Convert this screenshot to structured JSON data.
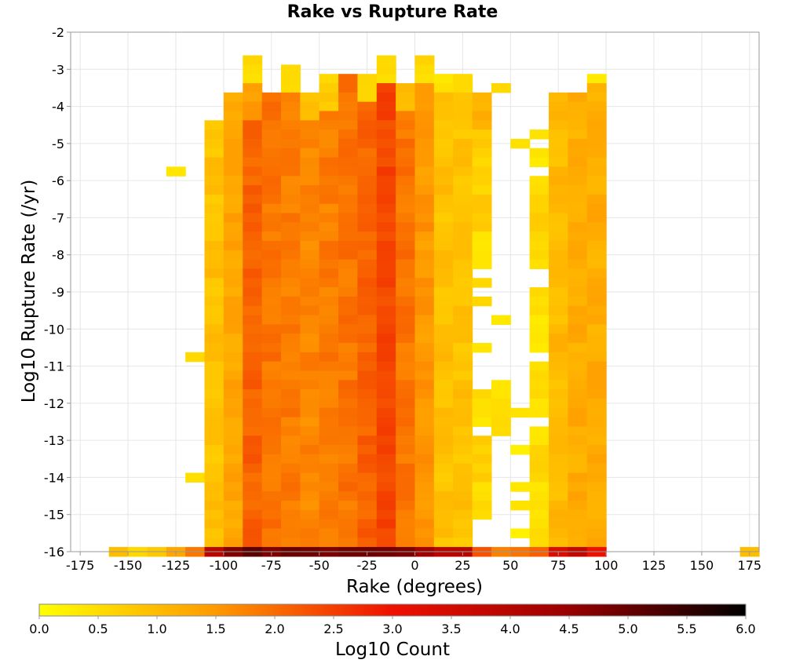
{
  "chart_data": {
    "type": "heatmap",
    "title": "Rake vs Rupture Rate",
    "xlabel": "Rake (degrees)",
    "ylabel": "Log10 Rupture Rate (/yr)",
    "xlim": [
      -180,
      180
    ],
    "ylim": [
      -16,
      -2
    ],
    "x_ticks": [
      -175,
      -150,
      -125,
      -100,
      -75,
      -50,
      -25,
      0,
      25,
      50,
      75,
      100,
      125,
      150,
      175
    ],
    "y_ticks": [
      -2,
      -3,
      -4,
      -5,
      -6,
      -7,
      -8,
      -9,
      -10,
      -11,
      -12,
      -13,
      -14,
      -15,
      -16
    ],
    "cell_width": 10,
    "cell_height": 0.25,
    "grid": true,
    "colorbar": {
      "label": "Log10 Count",
      "range": [
        0,
        6
      ],
      "ticks": [
        "0.0",
        "0.5",
        "1.0",
        "1.5",
        "2.0",
        "2.5",
        "3.0",
        "3.5",
        "4.0",
        "4.5",
        "5.0",
        "5.5",
        "6.0"
      ],
      "colors": [
        "#ffff00",
        "#ff9900",
        "#ee1100",
        "#990000",
        "#000000"
      ]
    },
    "bottom_row": {
      "y": -16,
      "cells": [
        [
          -155,
          1.0
        ],
        [
          -145,
          0.6
        ],
        [
          -135,
          1.0
        ],
        [
          -125,
          1.3
        ],
        [
          -115,
          1.8
        ],
        [
          -105,
          4.2
        ],
        [
          -95,
          4.8
        ],
        [
          -85,
          5.2
        ],
        [
          -75,
          5.0
        ],
        [
          -65,
          5.0
        ],
        [
          -55,
          4.9
        ],
        [
          -45,
          4.9
        ],
        [
          -35,
          4.9
        ],
        [
          -25,
          4.9
        ],
        [
          -15,
          5.0
        ],
        [
          -5,
          4.8
        ],
        [
          5,
          4.4
        ],
        [
          15,
          4.2
        ],
        [
          25,
          4.0
        ],
        [
          35,
          2.3
        ],
        [
          45,
          2.0
        ],
        [
          55,
          2.0
        ],
        [
          65,
          2.2
        ],
        [
          75,
          3.5
        ],
        [
          85,
          4.0
        ],
        [
          95,
          3.0
        ],
        [
          175,
          1.2
        ]
      ]
    },
    "columns": [
      {
        "x": -125,
        "cells": [
          [
            -5.75,
            -5.75,
            0.5
          ]
        ]
      },
      {
        "x": -115,
        "cells": [
          [
            -10.75,
            -10.75,
            0.5
          ],
          [
            -14.0,
            -14.0,
            0.6
          ]
        ]
      },
      {
        "x": -105,
        "cells": [
          [
            -4.5,
            -15.75,
            1.0
          ]
        ]
      },
      {
        "x": -95,
        "cells": [
          [
            -3.75,
            -15.75,
            1.4
          ]
        ]
      },
      {
        "x": -85,
        "cells": [
          [
            -2.75,
            -3.25,
            0.7
          ],
          [
            -3.5,
            -4.25,
            1.6
          ],
          [
            -4.5,
            -15.75,
            2.2
          ]
        ]
      },
      {
        "x": -75,
        "cells": [
          [
            -3.75,
            -15.75,
            2.0
          ]
        ]
      },
      {
        "x": -65,
        "cells": [
          [
            -3.0,
            -3.5,
            0.6
          ],
          [
            -3.75,
            -15.75,
            1.9
          ]
        ]
      },
      {
        "x": -55,
        "cells": [
          [
            -3.75,
            -4.25,
            1.0
          ],
          [
            -4.5,
            -15.75,
            1.8
          ]
        ]
      },
      {
        "x": -45,
        "cells": [
          [
            -3.25,
            -4.0,
            0.8
          ],
          [
            -4.25,
            -15.75,
            1.9
          ]
        ]
      },
      {
        "x": -35,
        "cells": [
          [
            -3.25,
            -15.75,
            2.0
          ]
        ]
      },
      {
        "x": -25,
        "cells": [
          [
            -3.25,
            -3.75,
            0.8
          ],
          [
            -4.0,
            -15.75,
            2.2
          ]
        ]
      },
      {
        "x": -15,
        "cells": [
          [
            -2.75,
            -3.25,
            0.7
          ],
          [
            -3.5,
            -15.75,
            2.5
          ]
        ]
      },
      {
        "x": -5,
        "cells": [
          [
            -3.5,
            -4.0,
            1.1
          ],
          [
            -4.25,
            -15.75,
            2.0
          ]
        ]
      },
      {
        "x": 5,
        "cells": [
          [
            -2.75,
            -3.25,
            0.7
          ],
          [
            -3.5,
            -15.75,
            1.6
          ]
        ]
      },
      {
        "x": 15,
        "cells": [
          [
            -3.25,
            -3.5,
            0.5
          ],
          [
            -3.75,
            -15.75,
            1.0
          ]
        ]
      },
      {
        "x": 25,
        "cells": [
          [
            -3.25,
            -3.5,
            0.5
          ],
          [
            -3.75,
            -15.75,
            1.0
          ]
        ]
      },
      {
        "x": 35,
        "cells": [
          [
            -3.75,
            -4.5,
            1.2
          ],
          [
            -4.75,
            -7.25,
            0.8
          ],
          [
            -7.5,
            -8.25,
            0.5
          ],
          [
            -8.75,
            -8.75,
            0.5
          ],
          [
            -9.25,
            -9.25,
            0.5
          ],
          [
            -10.5,
            -10.5,
            0.5
          ],
          [
            -11.75,
            -12.5,
            0.6
          ],
          [
            -13.0,
            -15.0,
            0.7
          ]
        ]
      },
      {
        "x": 45,
        "cells": [
          [
            -3.5,
            -3.5,
            0.5
          ],
          [
            -9.75,
            -9.75,
            0.5
          ],
          [
            -11.5,
            -12.5,
            0.6
          ],
          [
            -12.75,
            -12.75,
            0.5
          ]
        ]
      },
      {
        "x": 55,
        "cells": [
          [
            -5.0,
            -5.0,
            0.4
          ],
          [
            -12.25,
            -12.25,
            0.4
          ],
          [
            -13.25,
            -13.25,
            0.4
          ],
          [
            -14.25,
            -14.25,
            0.4
          ],
          [
            -14.75,
            -14.75,
            0.4
          ],
          [
            -15.5,
            -15.5,
            0.4
          ]
        ]
      },
      {
        "x": 65,
        "cells": [
          [
            -4.75,
            -4.75,
            0.4
          ],
          [
            -5.25,
            -5.5,
            0.4
          ],
          [
            -6.0,
            -8.25,
            0.7
          ],
          [
            -9.0,
            -10.5,
            0.5
          ],
          [
            -11.0,
            -12.25,
            0.5
          ],
          [
            -12.75,
            -15.75,
            0.6
          ]
        ]
      },
      {
        "x": 75,
        "cells": [
          [
            -3.75,
            -15.75,
            1.1
          ]
        ]
      },
      {
        "x": 85,
        "cells": [
          [
            -3.75,
            -15.75,
            1.3
          ]
        ]
      },
      {
        "x": 95,
        "cells": [
          [
            -3.25,
            -3.25,
            0.5
          ],
          [
            -3.5,
            -15.75,
            1.3
          ]
        ]
      }
    ]
  }
}
